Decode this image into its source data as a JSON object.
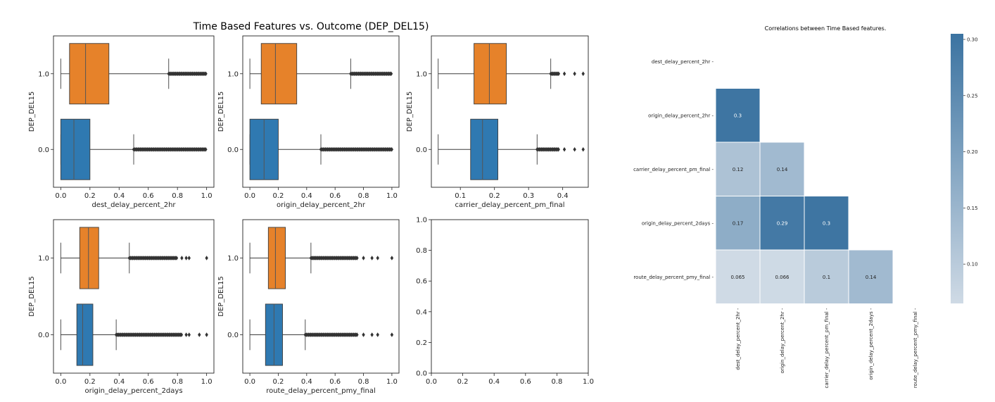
{
  "colors": {
    "class_1": "#e6822a",
    "class_0": "#2f79b1",
    "median_line": "#555555",
    "outlier": "#333333",
    "heatmap_high": "#3b73a1",
    "heatmap_low": "#cfdae5"
  },
  "chart_data": [
    {
      "type": "box",
      "title": "Time Based Features vs. Outcome (DEP_DEL15)",
      "orientation": "horizontal",
      "xlabel": "dest_delay_percent_2hr",
      "ylabel": "DEP_DEL15",
      "categories": [
        "1.0",
        "0.0"
      ],
      "xlim": [
        -0.05,
        1.05
      ],
      "xticks": [
        0.0,
        0.2,
        0.4,
        0.6,
        0.8,
        1.0
      ],
      "xtick_labels": [
        "0.0",
        "0.2",
        "0.4",
        "0.6",
        "0.8",
        "1.0"
      ],
      "boxes": [
        {
          "group": "1.0",
          "whisker_low": 0.0,
          "q1": 0.06,
          "median": 0.17,
          "q3": 0.33,
          "whisker_high": 0.74,
          "outliers_from": 0.74,
          "outliers_to": 1.0
        },
        {
          "group": "0.0",
          "whisker_low": 0.0,
          "q1": 0.0,
          "median": 0.09,
          "q3": 0.2,
          "whisker_high": 0.5,
          "outliers_from": 0.5,
          "outliers_to": 1.0
        }
      ]
    },
    {
      "type": "box",
      "orientation": "horizontal",
      "xlabel": "origin_delay_percent_2hr",
      "ylabel": "DEP_DEL15",
      "categories": [
        "1.0",
        "0.0"
      ],
      "xlim": [
        -0.05,
        1.05
      ],
      "xticks": [
        0.0,
        0.2,
        0.4,
        0.6,
        0.8,
        1.0
      ],
      "xtick_labels": [
        "0.0",
        "0.2",
        "0.4",
        "0.6",
        "0.8",
        "1.0"
      ],
      "boxes": [
        {
          "group": "1.0",
          "whisker_low": 0.0,
          "q1": 0.08,
          "median": 0.18,
          "q3": 0.33,
          "whisker_high": 0.71,
          "outliers_from": 0.71,
          "outliers_to": 1.0
        },
        {
          "group": "0.0",
          "whisker_low": 0.0,
          "q1": 0.0,
          "median": 0.1,
          "q3": 0.2,
          "whisker_high": 0.5,
          "outliers_from": 0.5,
          "outliers_to": 1.0
        }
      ]
    },
    {
      "type": "box",
      "orientation": "horizontal",
      "xlabel": "carrier_delay_percent_pm_final",
      "ylabel": "DEP_DEL15",
      "categories": [
        "1.0",
        "0.0"
      ],
      "xlim": [
        0.015,
        0.475
      ],
      "xticks": [
        0.1,
        0.2,
        0.3,
        0.4
      ],
      "xtick_labels": [
        "0.1",
        "0.2",
        "0.3",
        "0.4"
      ],
      "boxes": [
        {
          "group": "1.0",
          "whisker_low": 0.035,
          "q1": 0.14,
          "median": 0.185,
          "q3": 0.235,
          "whisker_high": 0.365,
          "outliers_from": 0.365,
          "outliers_to": 0.39,
          "extra_outliers": [
            0.405,
            0.435,
            0.46
          ]
        },
        {
          "group": "0.0",
          "whisker_low": 0.035,
          "q1": 0.13,
          "median": 0.165,
          "q3": 0.21,
          "whisker_high": 0.325,
          "outliers_from": 0.325,
          "outliers_to": 0.39,
          "extra_outliers": [
            0.405,
            0.435,
            0.46
          ]
        }
      ]
    },
    {
      "type": "box",
      "orientation": "horizontal",
      "xlabel": "origin_delay_percent_2days",
      "ylabel": "DEP_DEL15",
      "categories": [
        "1.0",
        "0.0"
      ],
      "xlim": [
        -0.05,
        1.05
      ],
      "xticks": [
        0.0,
        0.2,
        0.4,
        0.6,
        0.8,
        1.0
      ],
      "xtick_labels": [
        "0.0",
        "0.2",
        "0.4",
        "0.6",
        "0.8",
        "1.0"
      ],
      "boxes": [
        {
          "group": "1.0",
          "whisker_low": 0.0,
          "q1": 0.13,
          "median": 0.19,
          "q3": 0.26,
          "whisker_high": 0.47,
          "outliers_from": 0.47,
          "outliers_to": 0.8,
          "extra_outliers": [
            0.83,
            0.86,
            0.88,
            1.0
          ]
        },
        {
          "group": "0.0",
          "whisker_low": 0.0,
          "q1": 0.11,
          "median": 0.15,
          "q3": 0.22,
          "whisker_high": 0.38,
          "outliers_from": 0.38,
          "outliers_to": 0.83,
          "extra_outliers": [
            0.86,
            0.88,
            0.95,
            1.0
          ]
        }
      ]
    },
    {
      "type": "box",
      "orientation": "horizontal",
      "xlabel": "route_delay_percent_pmy_final",
      "ylabel": "DEP_DEL15",
      "categories": [
        "1.0",
        "0.0"
      ],
      "xlim": [
        -0.05,
        1.05
      ],
      "xticks": [
        0.0,
        0.2,
        0.4,
        0.6,
        0.8,
        1.0
      ],
      "xtick_labels": [
        "0.0",
        "0.2",
        "0.4",
        "0.6",
        "0.8",
        "1.0"
      ],
      "boxes": [
        {
          "group": "1.0",
          "whisker_low": 0.0,
          "q1": 0.13,
          "median": 0.18,
          "q3": 0.25,
          "whisker_high": 0.43,
          "outliers_from": 0.43,
          "outliers_to": 0.76,
          "extra_outliers": [
            0.8,
            0.86,
            0.9,
            1.0
          ]
        },
        {
          "group": "0.0",
          "whisker_low": 0.0,
          "q1": 0.11,
          "median": 0.17,
          "q3": 0.23,
          "whisker_high": 0.39,
          "outliers_from": 0.39,
          "outliers_to": 0.76,
          "extra_outliers": [
            0.8,
            0.86,
            0.9,
            1.0
          ]
        }
      ]
    },
    {
      "type": "empty",
      "xlim": [
        0,
        1
      ],
      "ylim": [
        0,
        1
      ],
      "xticks": [
        0.0,
        0.2,
        0.4,
        0.6,
        0.8,
        1.0
      ],
      "xtick_labels": [
        "0.0",
        "0.2",
        "0.4",
        "0.6",
        "0.8",
        "1.0"
      ],
      "yticks": [
        0.0,
        0.2,
        0.4,
        0.6,
        0.8,
        1.0
      ],
      "ytick_labels": [
        "0.0",
        "0.2",
        "0.4",
        "0.6",
        "0.8",
        "1.0"
      ]
    },
    {
      "type": "heatmap",
      "title": "Correlations between Time Based features.",
      "rows": [
        "dest_delay_percent_2hr",
        "origin_delay_percent_2hr",
        "carrier_delay_percent_pm_final",
        "origin_delay_percent_2days",
        "route_delay_percent_pmy_final"
      ],
      "cols": [
        "dest_delay_percent_2hr",
        "origin_delay_percent_2hr",
        "carrier_delay_percent_pm_final",
        "origin_delay_percent_2days",
        "route_delay_percent_pmy_final"
      ],
      "values": [
        [
          null,
          null,
          null,
          null,
          null
        ],
        [
          0.3,
          null,
          null,
          null,
          null
        ],
        [
          0.12,
          0.14,
          null,
          null,
          null
        ],
        [
          0.17,
          0.29,
          0.3,
          null,
          null
        ],
        [
          0.065,
          0.066,
          0.1,
          0.14,
          null
        ]
      ],
      "labels": [
        [
          "",
          "",
          "",
          "",
          ""
        ],
        [
          "0.3",
          "",
          "",
          "",
          ""
        ],
        [
          "0.12",
          "0.14",
          "",
          "",
          ""
        ],
        [
          "0.17",
          "0.29",
          "0.3",
          "",
          ""
        ],
        [
          "0.065",
          "0.066",
          "0.1",
          "0.14",
          ""
        ]
      ],
      "colorbar": {
        "min": 0.065,
        "max": 0.305,
        "ticks": [
          0.1,
          0.15,
          0.2,
          0.25,
          0.3
        ],
        "tick_labels": [
          "0.10",
          "0.15",
          "0.20",
          "0.25",
          "0.30"
        ]
      }
    }
  ]
}
